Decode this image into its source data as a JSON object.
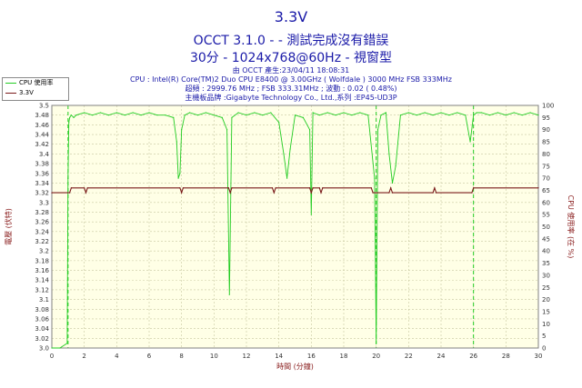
{
  "header": {
    "title": "3.3V",
    "subtitle": "OCCT 3.1.0 -  - 測試完成沒有錯誤",
    "subtitle2": "30分 - 1024x768@60Hz - 視窗型",
    "info_lines": [
      "由 OCCT 產生:23/04/11 18:08:31",
      "CPU : Intel(R) Core(TM)2 Duo CPU E8400 @ 3.00GHz ( Wolfdale ) 3000 MHz FSB 333MHz",
      "超頻 : 2999.76 MHz ; FSB 333.31MHz ; 波動 : 0.02 ( 0.48%)",
      "主機板品牌 :Gigabyte Technology Co., Ltd.,系列 :EP45-UD3P"
    ]
  },
  "colors": {
    "background": "#ffffff",
    "plot_bg": "#ffffe6",
    "grid": "#c8c8a0",
    "cpu_series": "#22cc22",
    "voltage_series": "#7a1a1a",
    "marker_line": "#22cc22",
    "title_text": "#1a1aa8",
    "axis_label": "#8b2020",
    "tick_text": "#333333"
  },
  "chart_data": {
    "type": "line",
    "xlabel": "時間 (分鐘)",
    "ylabel_left": "電壓 (伏特)",
    "ylabel_right": "CPU 使用率 (在 %)",
    "xlim": [
      0,
      30
    ],
    "ylim_left": [
      3.0,
      3.5
    ],
    "ylim_right": [
      0,
      100
    ],
    "x_ticks": [
      0,
      2,
      4,
      6,
      8,
      10,
      12,
      14,
      16,
      18,
      20,
      22,
      24,
      26,
      28,
      30
    ],
    "y_left_ticks": [
      3.0,
      3.02,
      3.04,
      3.06,
      3.08,
      3.1,
      3.12,
      3.14,
      3.16,
      3.18,
      3.2,
      3.22,
      3.24,
      3.26,
      3.28,
      3.3,
      3.32,
      3.34,
      3.36,
      3.38,
      3.4,
      3.42,
      3.44,
      3.46,
      3.48,
      3.5
    ],
    "y_right_ticks": [
      0,
      5,
      10,
      15,
      20,
      25,
      30,
      35,
      40,
      45,
      50,
      55,
      60,
      65,
      70,
      75,
      80,
      85,
      90,
      95,
      100
    ],
    "markers_x": [
      1,
      20,
      26
    ],
    "legend_position": "top-left",
    "series": [
      {
        "name": "CPU 使用率",
        "axis": "right",
        "x": [
          0,
          0.5,
          0.95,
          1.0,
          1.05,
          1.1,
          1.2,
          1.35,
          1.5,
          2,
          2.5,
          3,
          3.5,
          4,
          4.5,
          5,
          5.5,
          6,
          6.5,
          7,
          7.5,
          7.7,
          7.8,
          7.9,
          8.0,
          8.2,
          8.5,
          9,
          9.5,
          10,
          10.5,
          10.8,
          10.95,
          11.1,
          11.5,
          12,
          12.5,
          13,
          13.5,
          14,
          14.3,
          14.5,
          14.7,
          15,
          15.5,
          15.9,
          16.0,
          16.1,
          16.5,
          17,
          17.5,
          18,
          18.5,
          19,
          19.5,
          19.9,
          20.0,
          20.1,
          20.3,
          20.6,
          20.8,
          21.0,
          21.2,
          21.5,
          22,
          22.5,
          23,
          23.5,
          24,
          24.5,
          25,
          25.5,
          25.8,
          26.0,
          26.2,
          26.5,
          27,
          27.5,
          28,
          28.5,
          29,
          29.5,
          30
        ],
        "values": [
          0,
          0,
          2,
          70,
          93,
          95,
          96,
          95,
          96,
          97,
          96,
          97,
          96,
          97,
          96,
          97,
          96,
          97,
          96,
          96,
          95,
          85,
          70,
          72,
          90,
          96,
          97,
          96,
          97,
          96,
          95,
          90,
          22,
          95,
          97,
          96,
          97,
          96,
          97,
          93,
          80,
          70,
          82,
          96,
          95,
          90,
          55,
          97,
          96,
          97,
          96,
          97,
          96,
          97,
          96,
          70,
          2,
          90,
          96,
          97,
          80,
          68,
          75,
          96,
          97,
          96,
          97,
          96,
          97,
          96,
          97,
          96,
          85,
          96,
          97,
          97,
          96,
          97,
          96,
          97,
          96,
          97,
          96
        ]
      },
      {
        "name": "3.3V",
        "axis": "left",
        "x": [
          0,
          1.1,
          1.2,
          2.0,
          2.1,
          2.2,
          7.9,
          8.0,
          8.1,
          10.9,
          11.0,
          11.1,
          13.6,
          13.7,
          13.8,
          15.9,
          16.0,
          16.1,
          16.5,
          16.6,
          16.7,
          19.7,
          19.8,
          20.0,
          20.8,
          20.9,
          21.0,
          23.5,
          23.6,
          23.7,
          25.9,
          26.0,
          30
        ],
        "values": [
          3.32,
          3.32,
          3.33,
          3.33,
          3.32,
          3.33,
          3.33,
          3.32,
          3.33,
          3.33,
          3.32,
          3.33,
          3.33,
          3.32,
          3.33,
          3.33,
          3.32,
          3.33,
          3.33,
          3.32,
          3.33,
          3.33,
          3.32,
          3.32,
          3.32,
          3.33,
          3.32,
          3.32,
          3.33,
          3.32,
          3.32,
          3.33,
          3.33
        ]
      }
    ]
  }
}
